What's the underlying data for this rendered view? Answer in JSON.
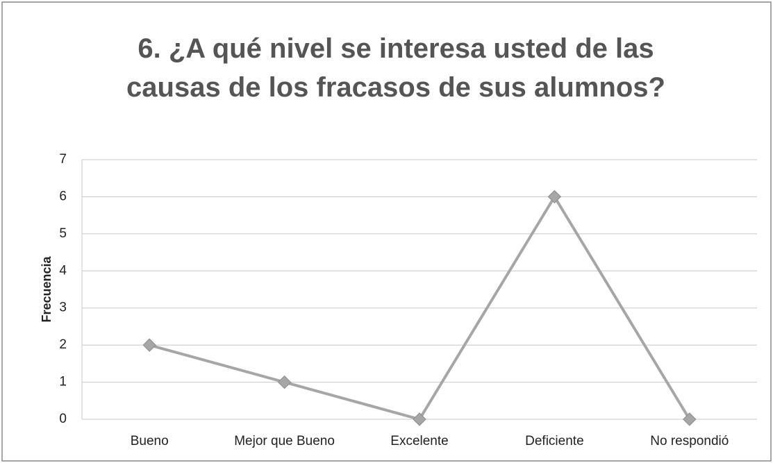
{
  "chart_data": {
    "type": "line",
    "title": "6. ¿A qué nivel se interesa usted de las causas de los fracasos de sus alumnos?",
    "y_label": "Frecuencia",
    "categories": [
      "Bueno",
      "Mejor que Bueno",
      "Excelente",
      "Deficiente",
      "No respondió"
    ],
    "series": [
      {
        "name": "Frecuencia",
        "color": "#a6a6a6",
        "values": [
          2,
          1,
          0,
          6,
          0
        ]
      }
    ],
    "ylim": [
      0,
      7
    ],
    "yticks": [
      0,
      1,
      2,
      3,
      4,
      5,
      6,
      7
    ],
    "grid": true,
    "legend": false
  }
}
